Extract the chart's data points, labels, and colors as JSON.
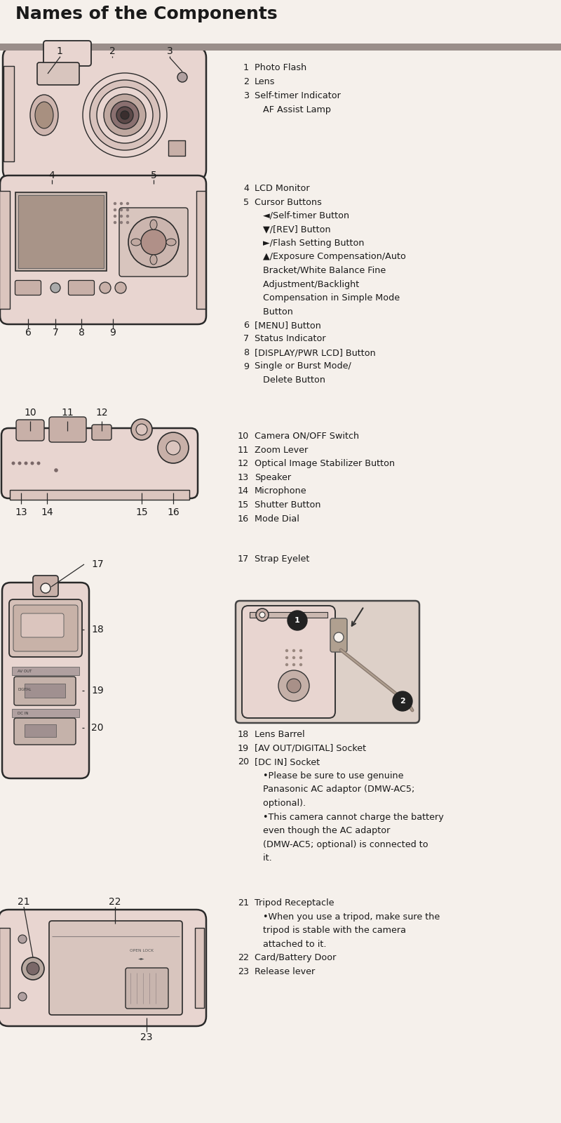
{
  "title": "Names of the Components",
  "bg_color": "#f5f0eb",
  "title_color": "#1a1a1a",
  "bar_color": "#9a8e8a",
  "camera_body": "#e8d5d0",
  "camera_body2": "#dbc5be",
  "camera_outline": "#2a2a2a",
  "camera_dark": "#998585",
  "camera_darker": "#7a6868",
  "camera_detail": "#c8b0a8",
  "text_color": "#1a1a1a",
  "label_indent": 3.55,
  "label_indent2": 3.75,
  "s1_items": [
    [
      "1",
      "Photo Flash"
    ],
    [
      "2",
      "Lens"
    ],
    [
      "3",
      "Self-timer Indicator"
    ],
    [
      "",
      "   AF Assist Lamp"
    ]
  ],
  "s2_items": [
    [
      "4",
      "LCD Monitor"
    ],
    [
      "5",
      "Cursor Buttons"
    ],
    [
      "",
      "   ◄/Self-timer Button"
    ],
    [
      "",
      "   ▼/[REV] Button"
    ],
    [
      "",
      "   ►/Flash Setting Button"
    ],
    [
      "",
      "   ▲/Exposure Compensation/Auto"
    ],
    [
      "",
      "   Bracket/White Balance Fine"
    ],
    [
      "",
      "   Adjustment/Backlight"
    ],
    [
      "",
      "   Compensation in Simple Mode"
    ],
    [
      "",
      "   Button"
    ],
    [
      "6",
      "[MENU] Button"
    ],
    [
      "7",
      "Status Indicator"
    ],
    [
      "8",
      "[DISPLAY/PWR LCD] Button"
    ],
    [
      "9",
      "Single or Burst Mode/"
    ],
    [
      "",
      "   Delete Button"
    ]
  ],
  "s3_items": [
    [
      "10",
      "Camera ON/OFF Switch"
    ],
    [
      "11",
      "Zoom Lever"
    ],
    [
      "12",
      "Optical Image Stabilizer Button"
    ],
    [
      "13",
      "Speaker"
    ],
    [
      "14",
      "Microphone"
    ],
    [
      "15",
      "Shutter Button"
    ],
    [
      "16",
      "Mode Dial"
    ]
  ],
  "s4_items": [
    [
      "17",
      "Strap Eyelet"
    ],
    [
      "18",
      "Lens Barrel"
    ],
    [
      "19",
      "[AV OUT/DIGITAL] Socket"
    ],
    [
      "20",
      "[DC IN] Socket"
    ],
    [
      "",
      "   •Please be sure to use genuine"
    ],
    [
      "",
      "   Panasonic AC adaptor (DMW-AC5;"
    ],
    [
      "",
      "   optional)."
    ],
    [
      "",
      "   •This camera cannot charge the battery"
    ],
    [
      "",
      "   even though the AC adaptor"
    ],
    [
      "",
      "   (DMW-AC5; optional) is connected to"
    ],
    [
      "",
      "   it."
    ]
  ],
  "s5_items": [
    [
      "21",
      "Tripod Receptacle"
    ],
    [
      "",
      "   •When you use a tripod, make sure the"
    ],
    [
      "",
      "   tripod is stable with the camera"
    ],
    [
      "",
      "   attached to it."
    ],
    [
      "22",
      "Card/Battery Door"
    ],
    [
      "23",
      "Release lever"
    ]
  ]
}
